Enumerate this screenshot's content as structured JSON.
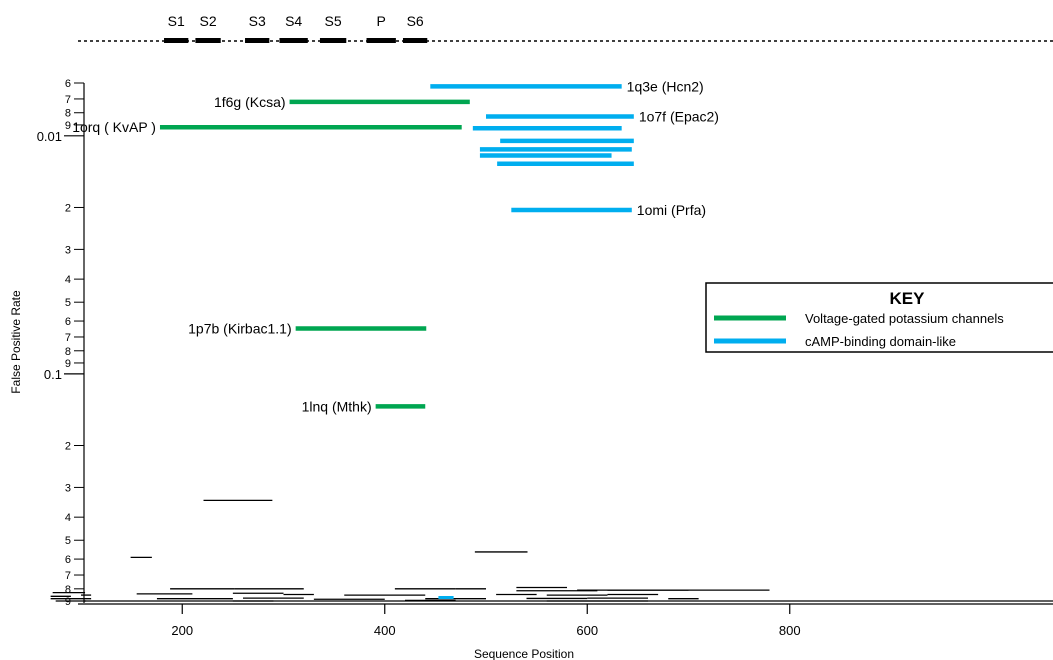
{
  "chart_data": {
    "type": "scatter",
    "title": "",
    "xlabel": "Sequence Position",
    "ylabel": "False Positive Rate",
    "xlim": [
      20,
      1060
    ],
    "ylim": [
      0.005,
      0.092
    ],
    "y_scale": "log",
    "y_inverted": true,
    "x_ticks": [
      200,
      400,
      600,
      800
    ],
    "y_major_ticks": [
      {
        "value": 0.01,
        "label": "0.01"
      },
      {
        "value": 0.1,
        "label": "0.1"
      }
    ],
    "y_minor_ticks": [
      {
        "value": 0.006,
        "label": "6"
      },
      {
        "value": 0.007,
        "label": "7"
      },
      {
        "value": 0.008,
        "label": "8"
      },
      {
        "value": 0.009,
        "label": "9"
      },
      {
        "value": 0.02,
        "label": "2"
      },
      {
        "value": 0.03,
        "label": "3"
      },
      {
        "value": 0.04,
        "label": "4"
      },
      {
        "value": 0.05,
        "label": "5"
      },
      {
        "value": 0.06,
        "label": "6"
      },
      {
        "value": 0.07,
        "label": "7"
      },
      {
        "value": 0.08,
        "label": "8"
      },
      {
        "value": 0.09,
        "label": "9"
      },
      {
        "value": 0.2,
        "label": "2"
      },
      {
        "value": 0.3,
        "label": "3"
      },
      {
        "value": 0.4,
        "label": "4"
      },
      {
        "value": 0.5,
        "label": "5"
      },
      {
        "value": 0.6,
        "label": "6"
      },
      {
        "value": 0.7,
        "label": "7"
      },
      {
        "value": 0.8,
        "label": "8"
      },
      {
        "value": 0.9,
        "label": "9"
      }
    ],
    "segments_track": [
      {
        "label": "S1",
        "start": 182,
        "end": 206
      },
      {
        "label": "S2",
        "start": 213,
        "end": 238
      },
      {
        "label": "S3",
        "start": 262,
        "end": 286
      },
      {
        "label": "S4",
        "start": 296,
        "end": 324
      },
      {
        "label": "S5",
        "start": 336,
        "end": 362
      },
      {
        "label": "P",
        "start": 382,
        "end": 411
      },
      {
        "label": "S6",
        "start": 418,
        "end": 442
      }
    ],
    "hits": [
      {
        "family": "cAMP-binding domain-like",
        "label": "1q3e (Hcn2)",
        "x_start": 445,
        "x_end": 634,
        "fpr": 0.0062
      },
      {
        "family": "Voltage-gated potassium channels",
        "label": "1f6g (Kcsa)",
        "x_start": 306,
        "x_end": 484,
        "fpr": 0.0072
      },
      {
        "family": "cAMP-binding domain-like",
        "label": "1o7f (Epac2)",
        "x_start": 500,
        "x_end": 646,
        "fpr": 0.0083
      },
      {
        "family": "Voltage-gated potassium channels",
        "label": "1orq ( KvAP )",
        "x_start": 178,
        "x_end": 476,
        "fpr": 0.0092
      },
      {
        "family": "cAMP-binding domain-like",
        "label": "",
        "x_start": 487,
        "x_end": 634,
        "fpr": 0.0093
      },
      {
        "family": "cAMP-binding domain-like",
        "label": "",
        "x_start": 514,
        "x_end": 646,
        "fpr": 0.0105
      },
      {
        "family": "cAMP-binding domain-like",
        "label": "",
        "x_start": 494,
        "x_end": 644,
        "fpr": 0.0114
      },
      {
        "family": "cAMP-binding domain-like",
        "label": "",
        "x_start": 494,
        "x_end": 624,
        "fpr": 0.0121
      },
      {
        "family": "cAMP-binding domain-like",
        "label": "",
        "x_start": 511,
        "x_end": 646,
        "fpr": 0.0131
      },
      {
        "family": "cAMP-binding domain-like",
        "label": "1omi (Prfa)",
        "x_start": 525,
        "x_end": 644,
        "fpr": 0.0205
      },
      {
        "family": "Voltage-gated potassium channels",
        "label": "1p7b (Kirbac1.1)",
        "x_start": 312,
        "x_end": 441,
        "fpr": 0.0645
      },
      {
        "family": "Voltage-gated potassium channels",
        "label": "1lnq (Mthk)",
        "x_start": 391,
        "x_end": 440,
        "fpr": 0.137
      }
    ],
    "other_hits": [
      [
        221,
        289,
        0.34
      ],
      [
        149,
        170,
        0.59
      ],
      [
        489,
        541,
        0.56
      ],
      [
        188,
        252,
        0.8
      ],
      [
        252,
        320,
        0.8
      ],
      [
        530,
        580,
        0.79
      ],
      [
        410,
        470,
        0.8
      ],
      [
        470,
        500,
        0.8
      ],
      [
        620,
        780,
        0.81
      ],
      [
        530,
        610,
        0.815
      ],
      [
        590,
        700,
        0.81
      ],
      [
        72,
        104,
        0.83
      ],
      [
        70,
        90,
        0.86
      ],
      [
        100,
        110,
        0.85
      ],
      [
        155,
        210,
        0.84
      ],
      [
        250,
        300,
        0.835
      ],
      [
        300,
        330,
        0.845
      ],
      [
        360,
        440,
        0.85
      ],
      [
        510,
        550,
        0.845
      ],
      [
        560,
        620,
        0.85
      ],
      [
        620,
        670,
        0.845
      ],
      [
        70,
        110,
        0.88
      ],
      [
        175,
        250,
        0.88
      ],
      [
        260,
        320,
        0.875
      ],
      [
        330,
        400,
        0.885
      ],
      [
        440,
        500,
        0.88
      ],
      [
        540,
        600,
        0.878
      ],
      [
        600,
        660,
        0.875
      ],
      [
        680,
        710,
        0.88
      ],
      [
        75,
        105,
        0.9
      ],
      [
        250,
        290,
        0.9
      ],
      [
        420,
        470,
        0.895
      ],
      [
        560,
        660,
        0.9
      ]
    ],
    "legend": {
      "title": "KEY",
      "placement": "right",
      "items": [
        {
          "label": "Voltage-gated potassium channels",
          "color": "#00a651"
        },
        {
          "label": "cAMP-binding domain-like",
          "color": "#00aeef"
        }
      ]
    },
    "colors": {
      "Voltage-gated potassium channels": "#00a651",
      "cAMP-binding domain-like": "#00aeef",
      "other": "#000000"
    }
  }
}
